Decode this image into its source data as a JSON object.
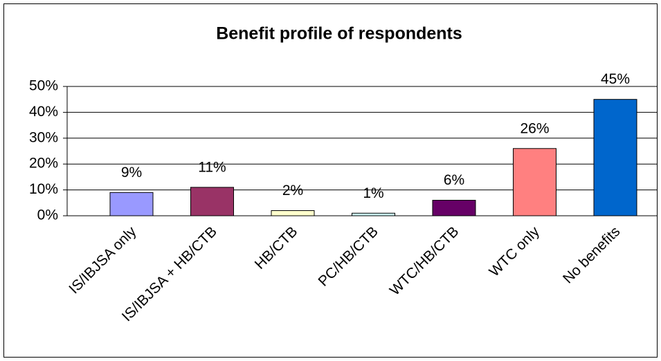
{
  "chart_data": {
    "type": "bar",
    "title": "Benefit profile of respondents",
    "categories": [
      "IS/IBJSA only",
      "IS/IBJSA + HB/CTB",
      "HB/CTB",
      "PC/HB/CTB",
      "WTC/HB/CTB",
      "WTC only",
      "No benefits"
    ],
    "values": [
      9,
      11,
      2,
      1,
      6,
      26,
      45
    ],
    "value_labels": [
      "9%",
      "11%",
      "2%",
      "1%",
      "6%",
      "26%",
      "45%"
    ],
    "colors": [
      "#9999ff",
      "#993366",
      "#ffffcc",
      "#ccffff",
      "#660066",
      "#ff8080",
      "#0066cc"
    ],
    "ylim": [
      0,
      50
    ],
    "yticks": [
      {
        "value": 0,
        "label": "0%"
      },
      {
        "value": 10,
        "label": "10%"
      },
      {
        "value": 20,
        "label": "20%"
      },
      {
        "value": 30,
        "label": "30%"
      },
      {
        "value": 40,
        "label": "40%"
      },
      {
        "value": 50,
        "label": "50%"
      }
    ],
    "grid": true
  }
}
